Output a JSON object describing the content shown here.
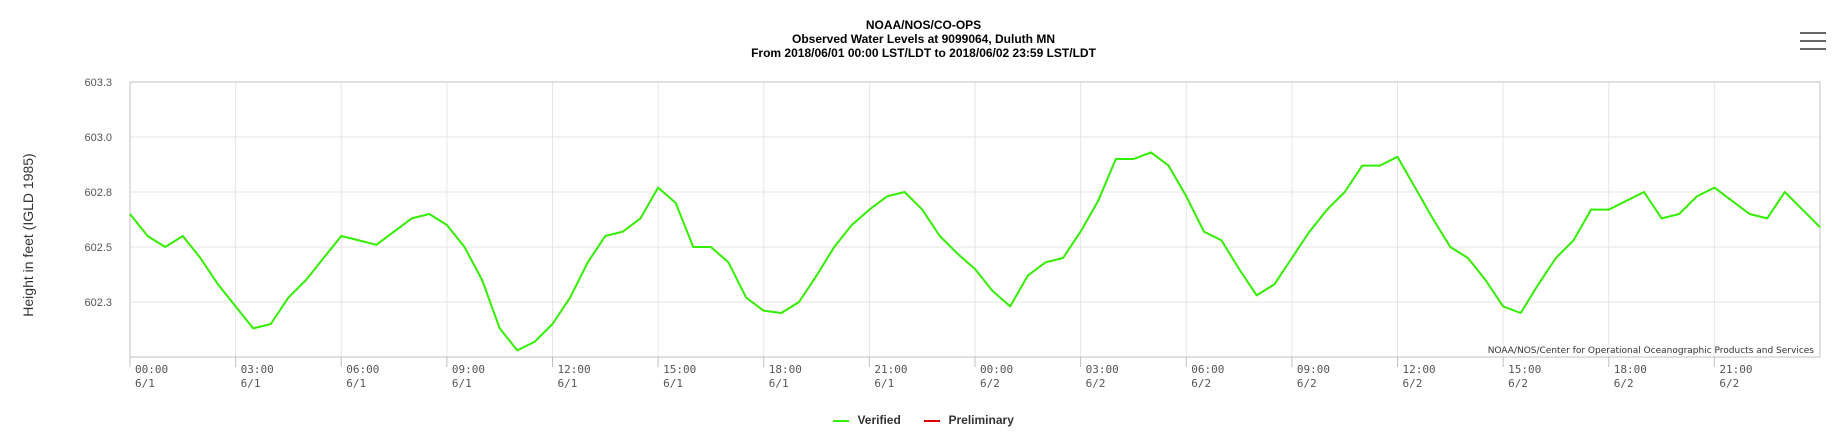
{
  "chart_data": {
    "type": "line",
    "title": [
      "NOAA/NOS/CO-OPS",
      "Observed Water Levels at 9099064, Duluth MN",
      "From 2018/06/01 00:00 LST/LDT to 2018/06/02 23:59 LST/LDT"
    ],
    "ylabel": "Height in feet (IGLD 1985)",
    "ylim": [
      602.05,
      603.3
    ],
    "y_ticks": [
      "603.3",
      "603.0",
      "602.8",
      "602.5",
      "602.3"
    ],
    "y_tick_values": [
      603.3,
      603.05,
      602.8,
      602.55,
      602.3
    ],
    "xlim_hours": [
      0,
      48
    ],
    "x_ticks": [
      {
        "time": "00:00",
        "date": "6/1"
      },
      {
        "time": "03:00",
        "date": "6/1"
      },
      {
        "time": "06:00",
        "date": "6/1"
      },
      {
        "time": "09:00",
        "date": "6/1"
      },
      {
        "time": "12:00",
        "date": "6/1"
      },
      {
        "time": "15:00",
        "date": "6/1"
      },
      {
        "time": "18:00",
        "date": "6/1"
      },
      {
        "time": "21:00",
        "date": "6/1"
      },
      {
        "time": "00:00",
        "date": "6/2"
      },
      {
        "time": "03:00",
        "date": "6/2"
      },
      {
        "time": "06:00",
        "date": "6/2"
      },
      {
        "time": "09:00",
        "date": "6/2"
      },
      {
        "time": "12:00",
        "date": "6/2"
      },
      {
        "time": "15:00",
        "date": "6/2"
      },
      {
        "time": "18:00",
        "date": "6/2"
      },
      {
        "time": "21:00",
        "date": "6/2"
      }
    ],
    "grid": true,
    "legend_position": "bottom-center",
    "credit": "NOAA/NOS/Center for Operational Oceanographic Products and Services",
    "series": [
      {
        "name": "Verified",
        "color": "#33ee00",
        "x": [
          0,
          0.5,
          1,
          1.5,
          2,
          2.5,
          3,
          3.5,
          4,
          4.5,
          5,
          5.5,
          6,
          6.5,
          7,
          7.5,
          8,
          8.5,
          9,
          9.5,
          10,
          10.5,
          11,
          11.5,
          12,
          12.5,
          13,
          13.5,
          14,
          14.5,
          15,
          15.5,
          16,
          16.5,
          17,
          17.5,
          18,
          18.5,
          19,
          19.5,
          20,
          20.5,
          21,
          21.5,
          22,
          22.5,
          23,
          23.5,
          24,
          24.5,
          25,
          25.5,
          26,
          26.5,
          27,
          27.5,
          28,
          28.5,
          29,
          29.5,
          30,
          30.5,
          31,
          31.5,
          32,
          32.5,
          33,
          33.5,
          34,
          34.5,
          35,
          35.5,
          36,
          36.5,
          37,
          37.5,
          38,
          38.5,
          39,
          39.5,
          40,
          40.5,
          41,
          41.5,
          42,
          42.5,
          43,
          43.5,
          44,
          44.5,
          45,
          45.5,
          46,
          46.5,
          47,
          47.5,
          48
        ],
        "y": [
          602.7,
          602.6,
          602.55,
          602.6,
          602.5,
          602.38,
          602.28,
          602.18,
          602.2,
          602.32,
          602.4,
          602.5,
          602.6,
          602.58,
          602.56,
          602.62,
          602.68,
          602.7,
          602.65,
          602.55,
          602.4,
          602.18,
          602.08,
          602.12,
          602.2,
          602.32,
          602.48,
          602.6,
          602.62,
          602.68,
          602.82,
          602.75,
          602.55,
          602.55,
          602.48,
          602.32,
          602.26,
          602.25,
          602.3,
          602.42,
          602.55,
          602.65,
          602.72,
          602.78,
          602.8,
          602.72,
          602.6,
          602.52,
          602.45,
          602.35,
          602.28,
          602.42,
          602.48,
          602.5,
          602.62,
          602.76,
          602.95,
          602.95,
          602.98,
          602.92,
          602.78,
          602.62,
          602.58,
          602.45,
          602.33,
          602.38,
          602.5,
          602.62,
          602.72,
          602.8,
          602.92,
          602.92,
          602.96,
          602.82,
          602.68,
          602.55,
          602.5,
          602.4,
          602.28,
          602.25,
          602.38,
          602.5,
          602.58,
          602.72,
          602.72,
          602.76,
          602.8,
          602.68,
          602.7,
          602.78,
          602.82,
          602.76,
          602.7,
          602.68,
          602.8,
          602.72,
          602.64
        ]
      },
      {
        "name": "Preliminary",
        "color": "#dd0000",
        "x": [],
        "y": []
      }
    ]
  }
}
